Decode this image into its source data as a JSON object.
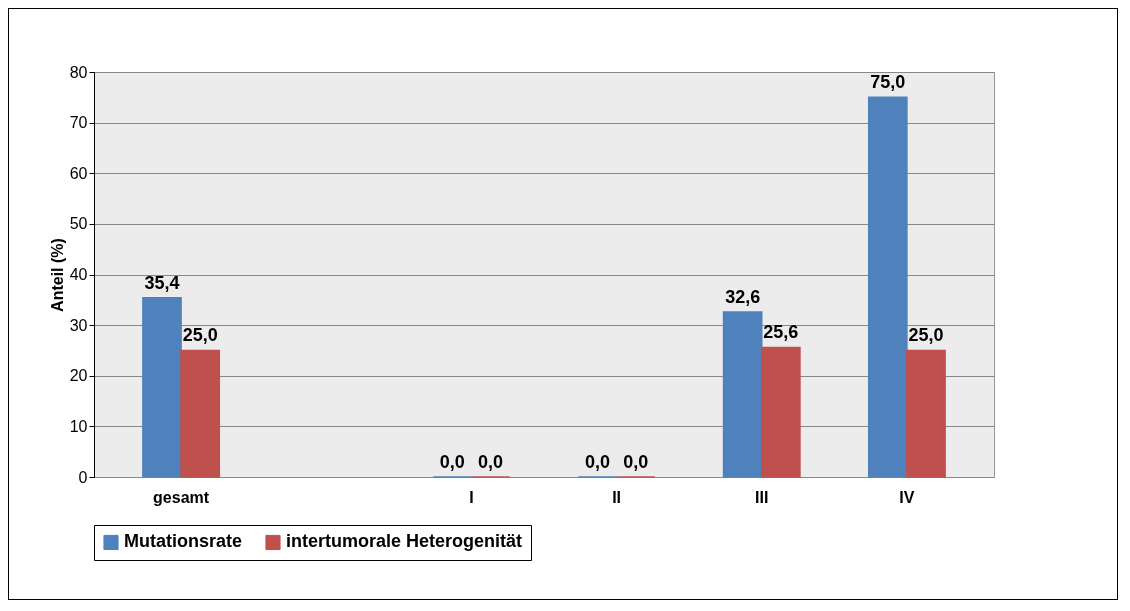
{
  "chart_data": {
    "type": "bar",
    "ylabel": "Anteil (%)",
    "categories": [
      "gesamt",
      null,
      "I",
      "II",
      "III",
      "IV"
    ],
    "series": [
      {
        "name": "Mutationsrate",
        "color": "#4f81bd",
        "values": [
          35.4,
          null,
          0,
          0,
          32.6,
          75.0
        ],
        "value_labels": [
          "35,4",
          null,
          "0,0",
          "0,0",
          "32,6",
          "75,0"
        ]
      },
      {
        "name": "intertumorale Heterogenität",
        "color": "#c0504d",
        "values": [
          25.0,
          null,
          0,
          0,
          25.6,
          25.0
        ],
        "value_labels": [
          "25,0",
          null,
          "0,0",
          "0,0",
          "25,6",
          "25,0"
        ]
      }
    ],
    "ylim": [
      0,
      80
    ],
    "yticks": [
      0,
      10,
      20,
      30,
      40,
      50,
      60,
      70,
      80
    ],
    "grid": "y",
    "legend": "bottom"
  }
}
